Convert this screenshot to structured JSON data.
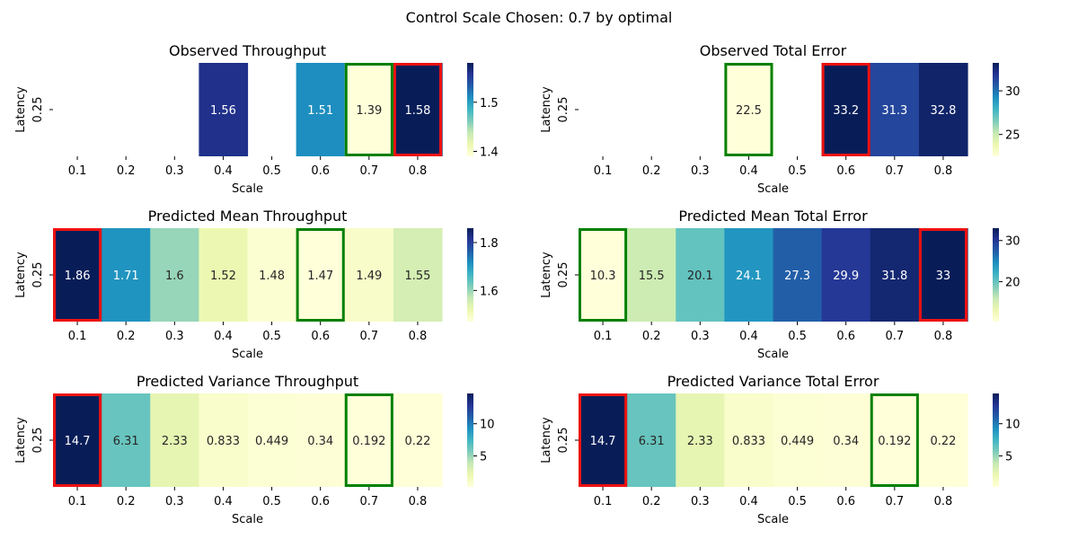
{
  "suptitle": "Control Scale Chosen: 0.7 by optimal",
  "chart_data": [
    {
      "type": "heatmap",
      "title": "Observed Throughput",
      "xlabel": "Scale",
      "ylabel": "Latency",
      "x_categories": [
        "0.1",
        "0.2",
        "0.3",
        "0.4",
        "0.5",
        "0.6",
        "0.7",
        "0.8"
      ],
      "y_categories": [
        "0.25"
      ],
      "values": [
        null,
        null,
        null,
        1.56,
        null,
        1.51,
        1.39,
        1.58
      ],
      "value_labels": [
        "",
        "",
        "",
        "1.56",
        "",
        "1.51",
        "1.39",
        "1.58"
      ],
      "vmin": 1.39,
      "vmax": 1.58,
      "colorbar_ticks": [
        "1.4",
        "1.5"
      ],
      "colormap": "YlGnBu",
      "highlight_best": "0.7",
      "highlight_worst": "0.8"
    },
    {
      "type": "heatmap",
      "title": "Observed Total Error",
      "xlabel": "Scale",
      "ylabel": "Latency",
      "x_categories": [
        "0.1",
        "0.2",
        "0.3",
        "0.4",
        "0.5",
        "0.6",
        "0.7",
        "0.8"
      ],
      "y_categories": [
        "0.25"
      ],
      "values": [
        null,
        null,
        null,
        22.5,
        null,
        33.2,
        31.3,
        32.8
      ],
      "value_labels": [
        "",
        "",
        "",
        "22.5",
        "",
        "33.2",
        "31.3",
        "32.8"
      ],
      "vmin": 22.5,
      "vmax": 33.2,
      "colorbar_ticks": [
        "25",
        "30"
      ],
      "colormap": "YlGnBu",
      "highlight_best": "0.4",
      "highlight_worst": "0.6"
    },
    {
      "type": "heatmap",
      "title": "Predicted Mean Throughput",
      "xlabel": "Scale",
      "ylabel": "Latency",
      "x_categories": [
        "0.1",
        "0.2",
        "0.3",
        "0.4",
        "0.5",
        "0.6",
        "0.7",
        "0.8"
      ],
      "y_categories": [
        "0.25"
      ],
      "values": [
        1.86,
        1.71,
        1.6,
        1.52,
        1.48,
        1.47,
        1.49,
        1.55
      ],
      "value_labels": [
        "1.86",
        "1.71",
        "1.6",
        "1.52",
        "1.48",
        "1.47",
        "1.49",
        "1.55"
      ],
      "vmin": 1.47,
      "vmax": 1.86,
      "colorbar_ticks": [
        "1.6",
        "1.8"
      ],
      "colormap": "YlGnBu",
      "highlight_best": "0.6",
      "highlight_worst": "0.1"
    },
    {
      "type": "heatmap",
      "title": "Predicted Mean Total Error",
      "xlabel": "Scale",
      "ylabel": "Latency",
      "x_categories": [
        "0.1",
        "0.2",
        "0.3",
        "0.4",
        "0.5",
        "0.6",
        "0.7",
        "0.8"
      ],
      "y_categories": [
        "0.25"
      ],
      "values": [
        10.3,
        15.5,
        20.1,
        24.1,
        27.3,
        29.9,
        31.8,
        33
      ],
      "value_labels": [
        "10.3",
        "15.5",
        "20.1",
        "24.1",
        "27.3",
        "29.9",
        "31.8",
        "33"
      ],
      "vmin": 10.3,
      "vmax": 33,
      "colorbar_ticks": [
        "20",
        "30"
      ],
      "colormap": "YlGnBu",
      "highlight_best": "0.1",
      "highlight_worst": "0.8"
    },
    {
      "type": "heatmap",
      "title": "Predicted Variance Throughput",
      "xlabel": "Scale",
      "ylabel": "Latency",
      "x_categories": [
        "0.1",
        "0.2",
        "0.3",
        "0.4",
        "0.5",
        "0.6",
        "0.7",
        "0.8"
      ],
      "y_categories": [
        "0.25"
      ],
      "values": [
        14.7,
        6.31,
        2.33,
        0.833,
        0.449,
        0.34,
        0.192,
        0.22
      ],
      "value_labels": [
        "14.7",
        "6.31",
        "2.33",
        "0.833",
        "0.449",
        "0.34",
        "0.192",
        "0.22"
      ],
      "vmin": 0.192,
      "vmax": 14.7,
      "colorbar_ticks": [
        "5",
        "10"
      ],
      "colormap": "YlGnBu",
      "highlight_best": "0.7",
      "highlight_worst": "0.1"
    },
    {
      "type": "heatmap",
      "title": "Predicted Variance Total Error",
      "xlabel": "Scale",
      "ylabel": "Latency",
      "x_categories": [
        "0.1",
        "0.2",
        "0.3",
        "0.4",
        "0.5",
        "0.6",
        "0.7",
        "0.8"
      ],
      "y_categories": [
        "0.25"
      ],
      "values": [
        14.7,
        6.31,
        2.33,
        0.833,
        0.449,
        0.34,
        0.192,
        0.22
      ],
      "value_labels": [
        "14.7",
        "6.31",
        "2.33",
        "0.833",
        "0.449",
        "0.34",
        "0.192",
        "0.22"
      ],
      "vmin": 0.192,
      "vmax": 14.7,
      "colorbar_ticks": [
        "5",
        "10"
      ],
      "colormap": "YlGnBu",
      "highlight_best": "0.7",
      "highlight_worst": "0.1"
    }
  ],
  "colors": {
    "best_outline": "#008000",
    "worst_outline": "#ee1111",
    "text_dark": "#262626",
    "text_light": "#ffffff"
  }
}
